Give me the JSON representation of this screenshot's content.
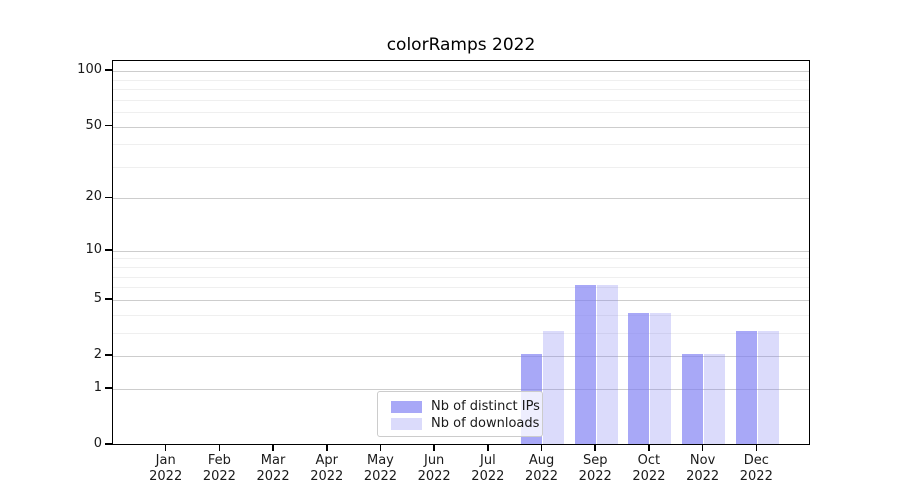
{
  "chart_data": {
    "type": "bar",
    "title": "colorRamps 2022",
    "categories": [
      "Jan 2022",
      "Feb 2022",
      "Mar 2022",
      "Apr 2022",
      "May 2022",
      "Jun 2022",
      "Jul 2022",
      "Aug 2022",
      "Sep 2022",
      "Oct 2022",
      "Nov 2022",
      "Dec 2022"
    ],
    "series": [
      {
        "name": "Nb of distinct IPs",
        "color": "#7a7af2",
        "fill": "rgba(122,122,242,0.65)",
        "values": [
          0,
          0,
          0,
          0,
          0,
          0,
          0,
          2,
          6,
          4,
          2,
          3
        ]
      },
      {
        "name": "Nb of downloads",
        "color": "#7a7af2",
        "fill": "rgba(122,122,242,0.27)",
        "values": [
          0,
          0,
          0,
          0,
          0,
          0,
          0,
          3,
          6,
          4,
          2,
          3
        ]
      }
    ],
    "xlabel": "",
    "ylabel": "",
    "y_ticks": [
      0,
      1,
      2,
      5,
      10,
      20,
      50,
      100
    ],
    "y_minor_ticks": [
      3,
      4,
      6,
      7,
      8,
      9,
      30,
      40,
      60,
      70,
      80,
      90
    ],
    "scale": "log1p",
    "ylim": [
      0,
      114
    ],
    "grid": true,
    "legend_position": "lower center",
    "colors": {
      "major_grid": "#cdcdcd",
      "minor_grid": "#efefef",
      "spine": "#000000",
      "text": "#1a1a1a"
    }
  }
}
